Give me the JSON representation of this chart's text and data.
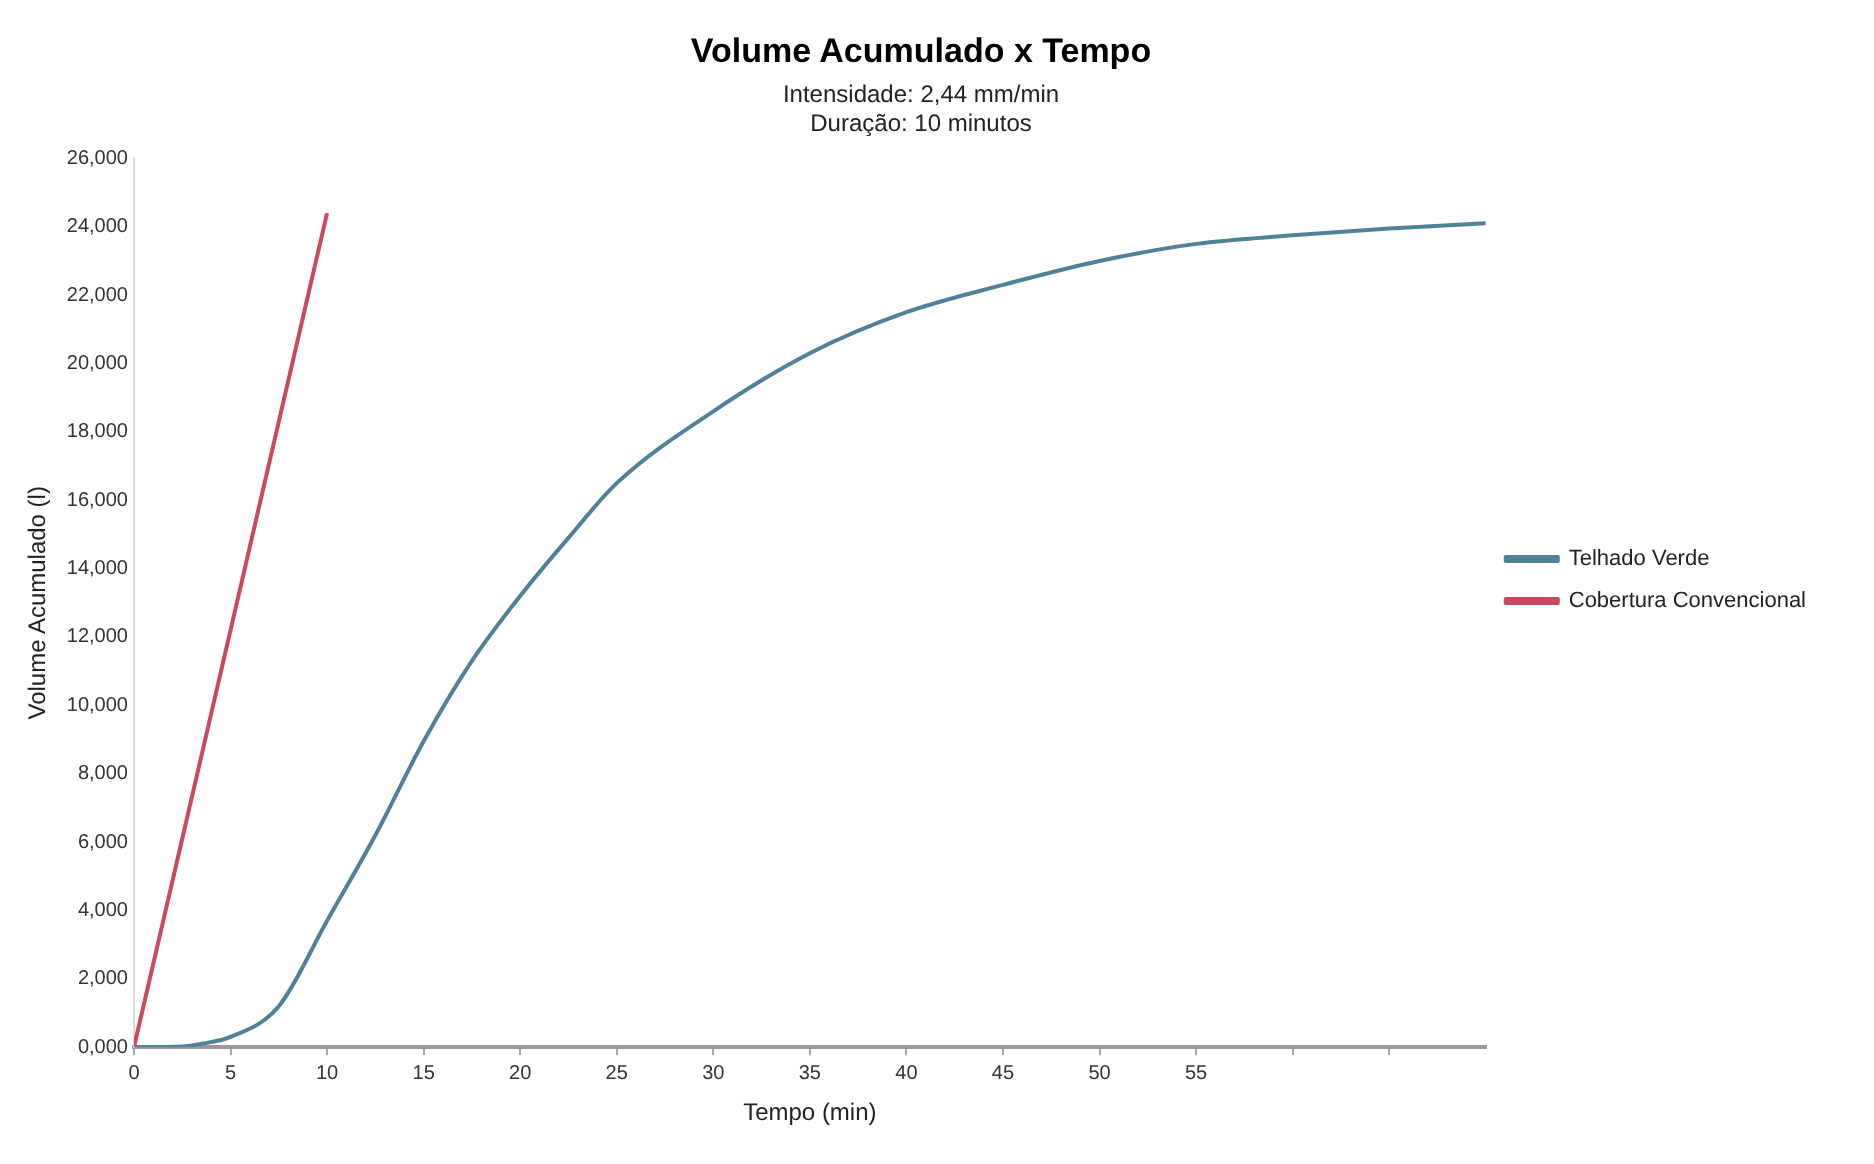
{
  "chart_data": {
    "type": "line",
    "title": "Volume Acumulado x Tempo",
    "subtitle": "Intensidade: 2,44 mm/min\nDuração: 10 minutos",
    "xlabel": "Tempo (min)",
    "ylabel": "Volume Acumulado (l)",
    "xlim": [
      0,
      70
    ],
    "xticks": [
      0,
      5,
      10,
      15,
      20,
      25,
      30,
      35,
      40,
      45,
      50,
      55,
      {
        "value": 60,
        "label": null
      },
      {
        "value": 65,
        "label": null
      }
    ],
    "ylim": [
      0,
      26
    ],
    "yticks": [
      {
        "value": 0,
        "label": "0,000"
      },
      {
        "value": 2,
        "label": "2,000"
      },
      {
        "value": 4,
        "label": "4,000"
      },
      {
        "value": 6,
        "label": "6,000"
      },
      {
        "value": 8,
        "label": "8,000"
      },
      {
        "value": 10,
        "label": "10,000"
      },
      {
        "value": 12,
        "label": "12,000"
      },
      {
        "value": 14,
        "label": "14,000"
      },
      {
        "value": 16,
        "label": "16,000"
      },
      {
        "value": 18,
        "label": "18,000"
      },
      {
        "value": 20,
        "label": "20,000"
      },
      {
        "value": 22,
        "label": "22,000"
      },
      {
        "value": 24,
        "label": "24,000"
      },
      {
        "value": 26,
        "label": "26,000"
      }
    ],
    "grid": false,
    "legend": "right",
    "marker": "none",
    "line_style": "solid",
    "series": [
      {
        "name": "Telhado Verde",
        "color": "#4f8299",
        "x": [
          0,
          2.5,
          3.5,
          5,
          7.5,
          10,
          12.5,
          15,
          17.5,
          20,
          22.5,
          25,
          30,
          35,
          40,
          45,
          50,
          55,
          60,
          65,
          70
        ],
        "values": [
          0,
          0.02,
          0.1,
          0.3,
          1.2,
          3.7,
          6.2,
          8.95,
          11.3,
          13.2,
          14.9,
          16.5,
          18.6,
          20.3,
          21.5,
          22.3,
          23,
          23.5,
          23.75,
          23.95,
          24.1
        ]
      },
      {
        "name": "Cobertura Convencional",
        "color": "#c94a5a",
        "x": [
          0,
          10
        ],
        "values": [
          0,
          24.4
        ]
      }
    ]
  }
}
